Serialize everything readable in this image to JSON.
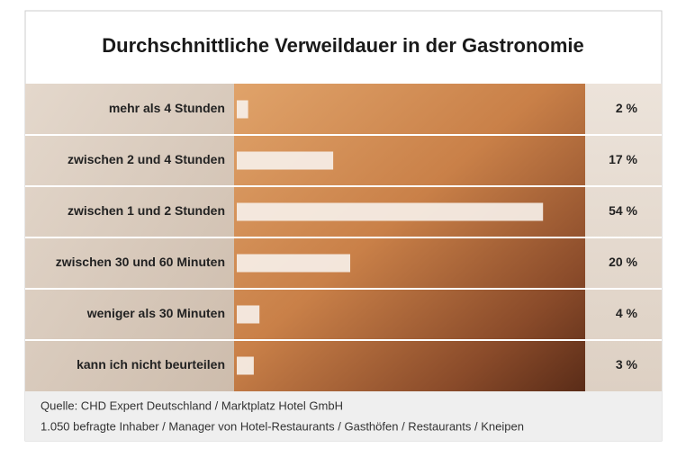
{
  "chart_data": {
    "type": "bar",
    "orientation": "horizontal",
    "title": "Durchschnittliche Verweildauer in der Gastronomie",
    "categories": [
      "mehr als 4 Stunden",
      "zwischen 2 und 4 Stunden",
      "zwischen 1 und 2 Stunden",
      "zwischen 30 und 60 Minuten",
      "weniger als 30 Minuten",
      "kann ich nicht beurteilen"
    ],
    "values": [
      2,
      17,
      54,
      20,
      4,
      3
    ],
    "value_labels": [
      "2 %",
      "17 %",
      "54 %",
      "20 %",
      "4 %",
      "3 %"
    ],
    "color": "#f6efe8",
    "source": "Quelle: CHD Expert Deutschland / Marktplatz Hotel GmbH",
    "note": "1.050 befragte Inhaber / Manager von Hotel-Restaurants / Gasthöfen / Restaurants / Kneipen"
  }
}
